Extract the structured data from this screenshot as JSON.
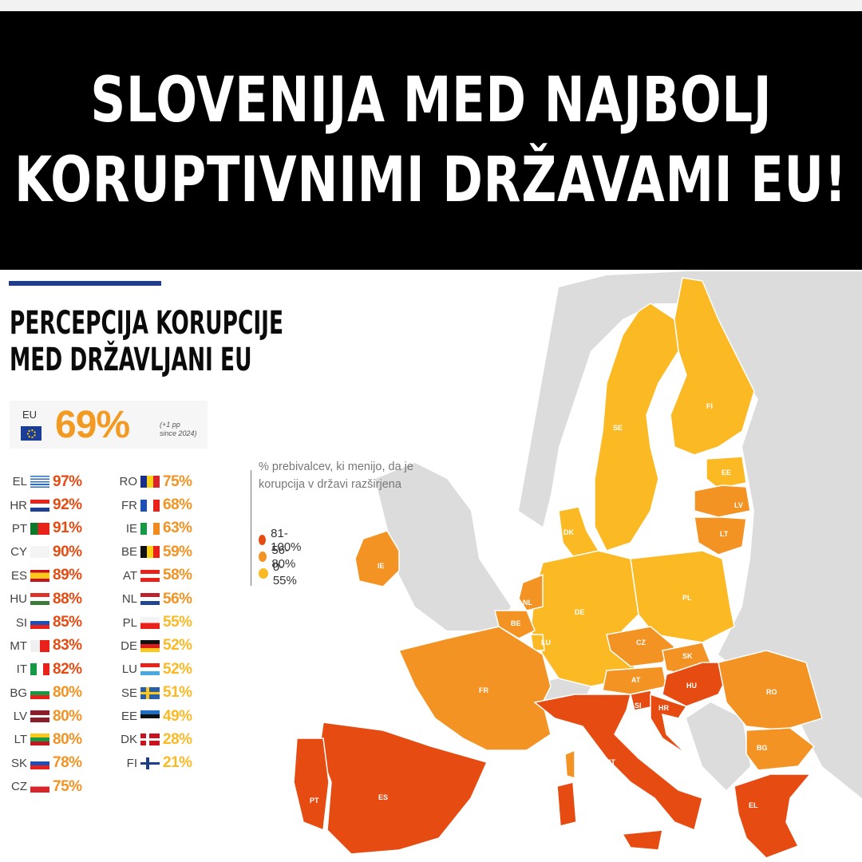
{
  "banner": {
    "line1": "SLOVENIJA MED NAJBOLJ",
    "line2": "KORUPTIVNIMI DRŽAVAMI EU!"
  },
  "subtitle": {
    "line1": "PERCEPCIJA KORUPCIJE",
    "line2": "MED DRŽAVLJANI EU"
  },
  "eu_summary": {
    "code": "EU",
    "value": "69%",
    "note_line1": "(+1 pp",
    "note_line2": "since 2024)"
  },
  "legend": {
    "title": "% prebivalcev, ki menijo, da je korupcija v državi razširjena",
    "items": [
      {
        "label": "81-100%",
        "color": "#e64b12"
      },
      {
        "label": "56-80%",
        "color": "#f39323"
      },
      {
        "label": "0-55%",
        "color": "#fbb924"
      }
    ]
  },
  "colors": {
    "high": "#e64b12",
    "mid": "#f39323",
    "low": "#fbb924",
    "nonEU": "#dcdcdc",
    "accent": "#1f3d8a"
  },
  "countries_left": [
    {
      "code": "EL",
      "value": "97%",
      "tier": "high"
    },
    {
      "code": "HR",
      "value": "92%",
      "tier": "high"
    },
    {
      "code": "PT",
      "value": "91%",
      "tier": "high"
    },
    {
      "code": "CY",
      "value": "90%",
      "tier": "high"
    },
    {
      "code": "ES",
      "value": "89%",
      "tier": "high"
    },
    {
      "code": "HU",
      "value": "88%",
      "tier": "high"
    },
    {
      "code": "SI",
      "value": "85%",
      "tier": "high"
    },
    {
      "code": "MT",
      "value": "83%",
      "tier": "high"
    },
    {
      "code": "IT",
      "value": "82%",
      "tier": "high"
    },
    {
      "code": "BG",
      "value": "80%",
      "tier": "mid"
    },
    {
      "code": "LV",
      "value": "80%",
      "tier": "mid"
    },
    {
      "code": "LT",
      "value": "80%",
      "tier": "mid"
    },
    {
      "code": "SK",
      "value": "78%",
      "tier": "mid"
    },
    {
      "code": "CZ",
      "value": "75%",
      "tier": "mid"
    }
  ],
  "countries_right": [
    {
      "code": "RO",
      "value": "75%",
      "tier": "mid"
    },
    {
      "code": "FR",
      "value": "68%",
      "tier": "mid"
    },
    {
      "code": "IE",
      "value": "63%",
      "tier": "mid"
    },
    {
      "code": "BE",
      "value": "59%",
      "tier": "mid"
    },
    {
      "code": "AT",
      "value": "58%",
      "tier": "mid"
    },
    {
      "code": "NL",
      "value": "56%",
      "tier": "mid"
    },
    {
      "code": "PL",
      "value": "55%",
      "tier": "low"
    },
    {
      "code": "DE",
      "value": "52%",
      "tier": "low"
    },
    {
      "code": "LU",
      "value": "52%",
      "tier": "low"
    },
    {
      "code": "SE",
      "value": "51%",
      "tier": "low"
    },
    {
      "code": "EE",
      "value": "49%",
      "tier": "low"
    },
    {
      "code": "DK",
      "value": "28%",
      "tier": "low"
    },
    {
      "code": "FI",
      "value": "21%",
      "tier": "low"
    }
  ],
  "map_labels": {
    "FI": "FI",
    "SE": "SE",
    "EE": "EE",
    "LV": "LV",
    "LT": "LT",
    "DK": "DK",
    "IE": "IE",
    "NL": "NL",
    "BE": "BE",
    "LU": "LU",
    "DE": "DE",
    "PL": "PL",
    "CZ": "CZ",
    "SK": "SK",
    "AT": "AT",
    "HU": "HU",
    "SI": "SI",
    "HR": "HR",
    "RO": "RO",
    "BG": "BG",
    "FR": "FR",
    "IT": "IT",
    "ES": "ES",
    "PT": "PT",
    "EL": "EL"
  },
  "chart_data": {
    "type": "map",
    "title": "PERCEPCIJA KORUPCIJE MED DRŽAVLJANI EU",
    "headline": "SLOVENIJA MED NAJBOLJ KORUPTIVNIMI DRŽAVAMI EU!",
    "subtitle": "% prebivalcev, ki menijo, da je korupcija v državi razširjena",
    "eu_average": 69,
    "eu_change": "+1 pp since 2024",
    "legend": [
      {
        "range": "81-100%",
        "color": "#e64b12"
      },
      {
        "range": "56-80%",
        "color": "#f39323"
      },
      {
        "range": "0-55%",
        "color": "#fbb924"
      }
    ],
    "categories": [
      "EL",
      "HR",
      "PT",
      "CY",
      "ES",
      "HU",
      "SI",
      "MT",
      "IT",
      "BG",
      "LV",
      "LT",
      "SK",
      "CZ",
      "RO",
      "FR",
      "IE",
      "BE",
      "AT",
      "NL",
      "PL",
      "DE",
      "LU",
      "SE",
      "EE",
      "DK",
      "FI"
    ],
    "values": [
      97,
      92,
      91,
      90,
      89,
      88,
      85,
      83,
      82,
      80,
      80,
      80,
      78,
      75,
      75,
      68,
      63,
      59,
      58,
      56,
      55,
      52,
      52,
      51,
      49,
      28,
      21
    ]
  }
}
